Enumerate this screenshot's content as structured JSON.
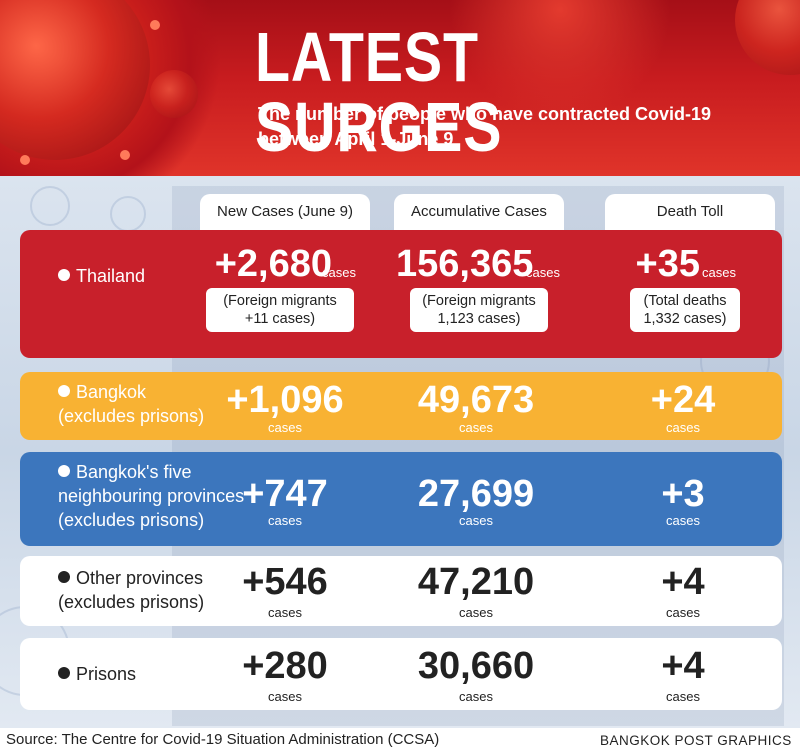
{
  "header": {
    "title": "LATEST SURGES",
    "subtitle_line1": "The number of people who have contracted Covid-19",
    "subtitle_line2": "between April 1-June 9"
  },
  "columns": {
    "new_cases": "New Cases (June 9)",
    "accumulative": "Accumulative Cases",
    "death_toll": "Death Toll"
  },
  "rows": {
    "thailand": {
      "label": "Thailand",
      "new": "+2,680",
      "new_unit": "cases",
      "new_note_line1": "(Foreign migrants",
      "new_note_line2": "+11 cases)",
      "acc": "156,365",
      "acc_unit": "cases",
      "acc_note_line1": "(Foreign migrants",
      "acc_note_line2": "1,123 cases)",
      "death": "+35",
      "death_unit": "cases",
      "death_note_line1": "(Total deaths",
      "death_note_line2": "1,332 cases)"
    },
    "bangkok": {
      "label_line1": "Bangkok",
      "label_line2": "(excludes prisons)",
      "new": "+1,096",
      "acc": "49,673",
      "death": "+24",
      "unit": "cases"
    },
    "five": {
      "label_line1": "Bangkok's five",
      "label_line2": "neighbouring provinces",
      "label_line3": "(excludes prisons)",
      "new": "+747",
      "acc": "27,699",
      "death": "+3",
      "unit": "cases"
    },
    "other": {
      "label_line1": "Other provinces",
      "label_line2": "(excludes prisons)",
      "new": "+546",
      "acc": "47,210",
      "death": "+4",
      "unit": "cases"
    },
    "prisons": {
      "label": "Prisons",
      "new": "+280",
      "acc": "30,660",
      "death": "+4",
      "unit": "cases"
    }
  },
  "footer": {
    "source": "Source: The Centre for Covid-19 Situation Administration (CCSA)",
    "credit": "BANGKOK POST GRAPHICS"
  },
  "colors": {
    "thailand": "#c8202b",
    "bangkok": "#f8b233",
    "five": "#3c76bd",
    "white_row": "#ffffff"
  }
}
